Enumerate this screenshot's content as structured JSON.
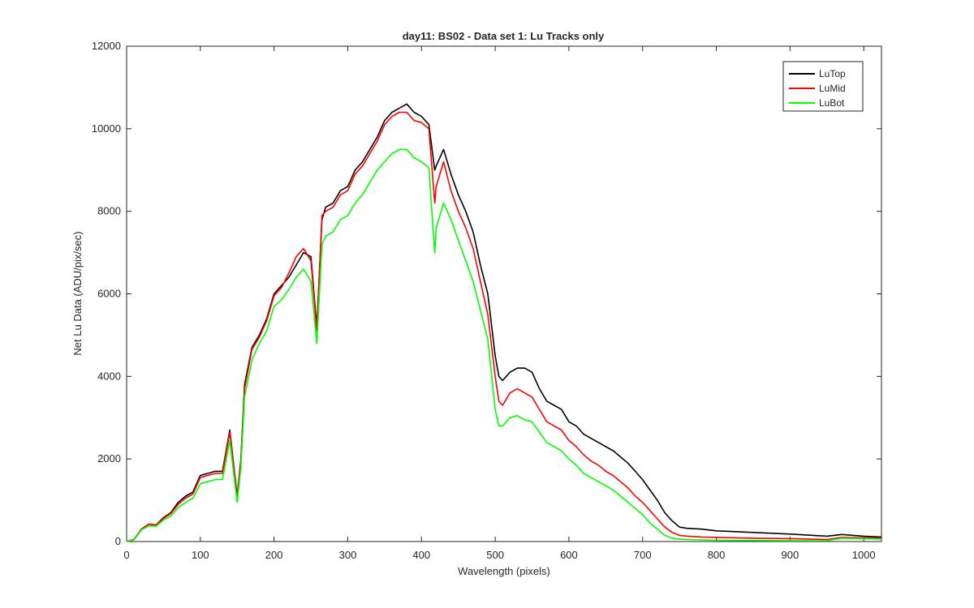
{
  "chart_data": {
    "type": "line",
    "title": "day11: BS02 - Data set 1: Lu Tracks only",
    "xlabel": "Wavelength (pixels)",
    "ylabel": "Net Lu Data (ADU/pix/sec)",
    "xlim": [
      0,
      1024
    ],
    "ylim": [
      0,
      12000
    ],
    "xticks": [
      0,
      100,
      200,
      300,
      400,
      500,
      600,
      700,
      800,
      900,
      1000
    ],
    "yticks": [
      0,
      2000,
      4000,
      6000,
      8000,
      10000,
      12000
    ],
    "grid": false,
    "legend_position": "top-right",
    "x": [
      0,
      10,
      20,
      30,
      40,
      50,
      60,
      70,
      80,
      90,
      100,
      110,
      120,
      130,
      140,
      150,
      155,
      160,
      170,
      180,
      190,
      200,
      210,
      220,
      230,
      240,
      250,
      258,
      265,
      270,
      280,
      290,
      300,
      310,
      320,
      330,
      340,
      350,
      360,
      370,
      380,
      390,
      400,
      410,
      418,
      420,
      430,
      440,
      450,
      460,
      470,
      480,
      490,
      500,
      505,
      510,
      520,
      530,
      540,
      550,
      560,
      570,
      580,
      590,
      600,
      610,
      620,
      630,
      640,
      650,
      660,
      670,
      680,
      690,
      700,
      710,
      720,
      730,
      740,
      750,
      760,
      780,
      800,
      850,
      900,
      950,
      970,
      1000,
      1024
    ],
    "series": [
      {
        "name": "LuTop",
        "color": "#000000",
        "values": [
          0,
          50,
          300,
          420,
          400,
          580,
          700,
          950,
          1100,
          1200,
          1600,
          1650,
          1700,
          1700,
          2700,
          1100,
          2000,
          3800,
          4700,
          5000,
          5400,
          6000,
          6200,
          6400,
          6700,
          7000,
          6900,
          5200,
          7800,
          8100,
          8200,
          8500,
          8600,
          9000,
          9200,
          9500,
          9800,
          10200,
          10400,
          10500,
          10600,
          10400,
          10300,
          10100,
          9000,
          9100,
          9500,
          8900,
          8400,
          8000,
          7500,
          6700,
          6000,
          4500,
          4000,
          3900,
          4100,
          4200,
          4200,
          4100,
          3700,
          3400,
          3300,
          3200,
          2900,
          2800,
          2600,
          2500,
          2400,
          2300,
          2200,
          2050,
          1900,
          1700,
          1500,
          1250,
          1000,
          700,
          500,
          350,
          320,
          300,
          260,
          220,
          180,
          130,
          170,
          130,
          110
        ]
      },
      {
        "name": "LuMid",
        "color": "#ff0000",
        "values": [
          0,
          50,
          300,
          420,
          400,
          560,
          680,
          900,
          1050,
          1150,
          1550,
          1600,
          1650,
          1650,
          2650,
          1050,
          1950,
          3700,
          4650,
          4950,
          5350,
          5950,
          6150,
          6500,
          6900,
          7100,
          6800,
          5100,
          7900,
          8000,
          8100,
          8400,
          8500,
          8900,
          9100,
          9400,
          9700,
          10100,
          10300,
          10400,
          10400,
          10200,
          10150,
          10000,
          8200,
          8600,
          9200,
          8500,
          8000,
          7600,
          7100,
          6300,
          5500,
          4000,
          3400,
          3300,
          3600,
          3700,
          3600,
          3500,
          3200,
          2900,
          2800,
          2700,
          2450,
          2300,
          2100,
          1950,
          1850,
          1700,
          1600,
          1450,
          1300,
          1100,
          950,
          750,
          550,
          350,
          220,
          150,
          130,
          110,
          100,
          80,
          70,
          50,
          100,
          90,
          80
        ]
      },
      {
        "name": "LuBot",
        "color": "#00ff00",
        "values": [
          0,
          40,
          280,
          380,
          370,
          520,
          620,
          820,
          950,
          1050,
          1400,
          1450,
          1500,
          1500,
          2450,
          950,
          1800,
          3500,
          4400,
          4800,
          5100,
          5700,
          5850,
          6100,
          6400,
          6600,
          6300,
          4800,
          7200,
          7400,
          7500,
          7800,
          7900,
          8200,
          8400,
          8700,
          9000,
          9200,
          9400,
          9500,
          9500,
          9300,
          9200,
          9050,
          7000,
          7600,
          8200,
          7800,
          7300,
          6800,
          6300,
          5600,
          4900,
          3200,
          2800,
          2800,
          3000,
          3050,
          2950,
          2900,
          2650,
          2400,
          2300,
          2200,
          2000,
          1850,
          1650,
          1550,
          1450,
          1350,
          1250,
          1100,
          950,
          800,
          650,
          450,
          300,
          150,
          80,
          60,
          50,
          40,
          30,
          25,
          20,
          20,
          80,
          70,
          60
        ]
      }
    ]
  }
}
